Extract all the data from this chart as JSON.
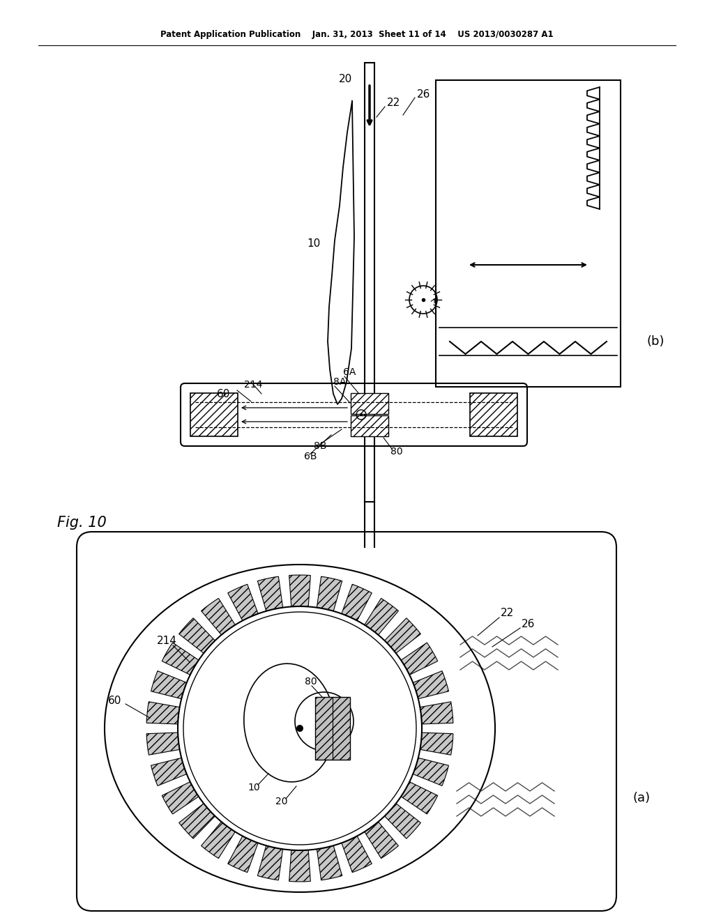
{
  "bg_color": "#ffffff",
  "header": "Patent Application Publication    Jan. 31, 2013  Sheet 11 of 14    US 2013/0030287 A1",
  "fig_label": "Fig. 10",
  "sub_b": "(b)",
  "sub_a": "(a)",
  "lbl_20": "20",
  "lbl_22": "22",
  "lbl_26": "26",
  "lbl_10": "10",
  "lbl_6A": "6A",
  "lbl_8A": "8A",
  "lbl_214": "214",
  "lbl_60": "60",
  "lbl_8B": "8B",
  "lbl_6B": "6B",
  "lbl_80": "80",
  "gray_hatch": "#aaaaaa",
  "light_gray": "#cccccc"
}
